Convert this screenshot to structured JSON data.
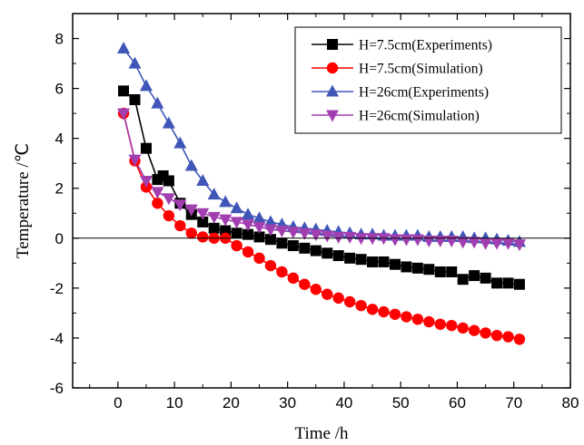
{
  "chart_data": {
    "type": "line",
    "title": "",
    "xlabel": "Time /h",
    "ylabel": "Temperature /℃",
    "xlim": [
      -8,
      80
    ],
    "ylim": [
      -6,
      9
    ],
    "xticks": [
      0,
      10,
      20,
      30,
      40,
      50,
      60,
      70,
      80
    ],
    "yticks": [
      -6,
      -4,
      -2,
      0,
      2,
      4,
      6,
      8
    ],
    "grid": false,
    "zero_line": true,
    "legend_position": "top-right",
    "series": [
      {
        "name": "H=7.5cm(Experiments)",
        "color": "#000000",
        "marker": "square",
        "x": [
          1,
          3,
          5,
          7,
          8,
          9,
          11,
          13,
          15,
          17,
          19,
          21,
          23,
          25,
          27,
          29,
          31,
          33,
          35,
          37,
          39,
          41,
          43,
          45,
          47,
          49,
          51,
          53,
          55,
          57,
          59,
          61,
          63,
          65,
          67,
          69,
          71
        ],
        "y": [
          5.9,
          5.55,
          3.6,
          2.35,
          2.5,
          2.3,
          1.4,
          0.95,
          0.65,
          0.4,
          0.3,
          0.2,
          0.15,
          0.05,
          -0.05,
          -0.2,
          -0.3,
          -0.4,
          -0.5,
          -0.6,
          -0.7,
          -0.8,
          -0.85,
          -0.95,
          -0.95,
          -1.05,
          -1.15,
          -1.2,
          -1.25,
          -1.35,
          -1.35,
          -1.65,
          -1.5,
          -1.6,
          -1.8,
          -1.8,
          -1.85
        ]
      },
      {
        "name": "H=7.5cm(Simulation)",
        "color": "#ff0000",
        "marker": "circle",
        "x": [
          1,
          3,
          5,
          7,
          9,
          11,
          13,
          15,
          17,
          19,
          21,
          23,
          25,
          27,
          29,
          31,
          33,
          35,
          37,
          39,
          41,
          43,
          45,
          47,
          49,
          51,
          53,
          55,
          57,
          59,
          61,
          63,
          65,
          67,
          69,
          71
        ],
        "y": [
          5.0,
          3.1,
          2.05,
          1.4,
          0.9,
          0.5,
          0.2,
          0.05,
          0.0,
          0.0,
          -0.3,
          -0.55,
          -0.8,
          -1.1,
          -1.35,
          -1.6,
          -1.85,
          -2.05,
          -2.25,
          -2.4,
          -2.55,
          -2.7,
          -2.85,
          -2.95,
          -3.05,
          -3.15,
          -3.25,
          -3.35,
          -3.45,
          -3.5,
          -3.6,
          -3.7,
          -3.8,
          -3.9,
          -3.95,
          -4.05
        ]
      },
      {
        "name": "H=26cm(Experiments)",
        "color": "#3f56b8",
        "marker": "triangle-up",
        "x": [
          1,
          3,
          5,
          7,
          9,
          11,
          13,
          15,
          17,
          19,
          21,
          23,
          25,
          27,
          29,
          31,
          33,
          35,
          37,
          39,
          41,
          43,
          45,
          47,
          49,
          51,
          53,
          55,
          57,
          59,
          61,
          63,
          65,
          67,
          69,
          71
        ],
        "y": [
          7.6,
          7.0,
          6.1,
          5.4,
          4.6,
          3.8,
          2.9,
          2.3,
          1.75,
          1.45,
          1.2,
          0.95,
          0.8,
          0.65,
          0.55,
          0.45,
          0.4,
          0.35,
          0.3,
          0.25,
          0.2,
          0.15,
          0.15,
          0.1,
          0.1,
          0.1,
          0.1,
          0.05,
          0.05,
          0.05,
          0.05,
          0.0,
          0.0,
          -0.05,
          -0.1,
          -0.15
        ]
      },
      {
        "name": "H=26cm(Simulation)",
        "color": "#a23fb0",
        "marker": "triangle-down",
        "x": [
          1,
          3,
          5,
          7,
          9,
          11,
          13,
          15,
          17,
          19,
          21,
          23,
          25,
          27,
          29,
          31,
          33,
          35,
          37,
          39,
          41,
          43,
          45,
          47,
          49,
          51,
          53,
          55,
          57,
          59,
          61,
          63,
          65,
          67,
          69,
          71
        ],
        "y": [
          5.0,
          3.15,
          2.3,
          1.85,
          1.6,
          1.35,
          1.15,
          1.0,
          0.85,
          0.75,
          0.65,
          0.55,
          0.45,
          0.35,
          0.3,
          0.25,
          0.2,
          0.15,
          0.1,
          0.05,
          0.05,
          0.0,
          0.0,
          0.0,
          -0.05,
          -0.05,
          -0.05,
          -0.1,
          -0.1,
          -0.1,
          -0.15,
          -0.15,
          -0.2,
          -0.2,
          -0.2,
          -0.25
        ]
      }
    ]
  }
}
